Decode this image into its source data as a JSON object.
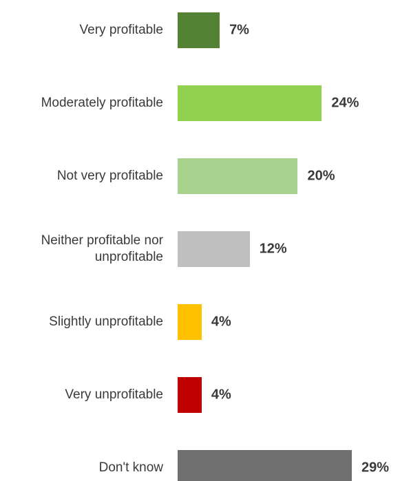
{
  "chart_data": {
    "type": "bar",
    "orientation": "horizontal",
    "categories": [
      "Very profitable",
      "Moderately profitable",
      "Not very profitable",
      "Neither profitable nor\nunprofitable",
      "Slightly unprofitable",
      "Very unprofitable",
      "Don't know"
    ],
    "values": [
      7,
      24,
      20,
      12,
      4,
      4,
      29
    ],
    "value_labels": [
      "7%",
      "24%",
      "20%",
      "12%",
      "4%",
      "4%",
      "29%"
    ],
    "colors": [
      "#548235",
      "#92d050",
      "#a9d18e",
      "#bfbfbf",
      "#ffc000",
      "#c00000",
      "#6f6f6f"
    ]
  }
}
